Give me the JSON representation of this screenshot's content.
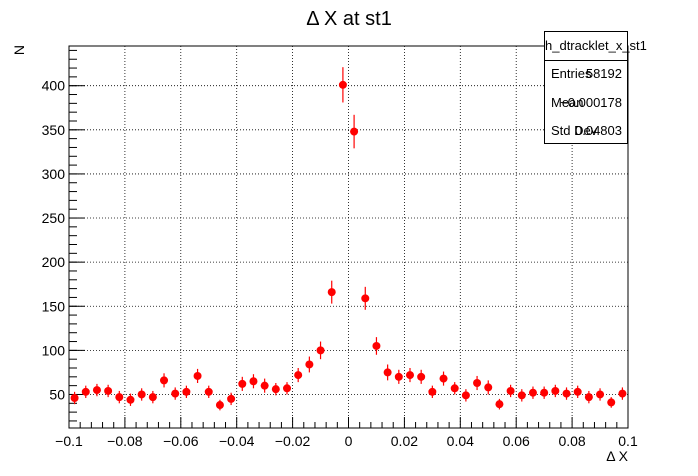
{
  "chart_data": {
    "type": "scatter",
    "title": "Δ X at st1",
    "xlabel": "Δ X",
    "ylabel": "N",
    "xlim": [
      -0.1,
      0.1
    ],
    "ylim": [
      12,
      445
    ],
    "x_ticks": [
      -0.1,
      -0.08,
      -0.06,
      -0.04,
      -0.02,
      0,
      0.02,
      0.04,
      0.06,
      0.08,
      0.1
    ],
    "x_tick_labels": [
      "−0.1",
      "−0.08",
      "−0.06",
      "−0.04",
      "−0.02",
      "0",
      "0.02",
      "0.04",
      "0.06",
      "0.08",
      "0.1"
    ],
    "y_ticks": [
      50,
      100,
      150,
      200,
      250,
      300,
      350,
      400
    ],
    "y_tick_labels": [
      "50",
      "100",
      "150",
      "200",
      "250",
      "300",
      "350",
      "400"
    ],
    "grid": true,
    "marker_color": "#ff0000",
    "series": [
      {
        "points": [
          {
            "x": -0.098,
            "y": 46,
            "err": 7
          },
          {
            "x": -0.094,
            "y": 53,
            "err": 7
          },
          {
            "x": -0.09,
            "y": 55,
            "err": 7
          },
          {
            "x": -0.086,
            "y": 54,
            "err": 7
          },
          {
            "x": -0.082,
            "y": 47,
            "err": 7
          },
          {
            "x": -0.078,
            "y": 44,
            "err": 7
          },
          {
            "x": -0.074,
            "y": 50,
            "err": 7
          },
          {
            "x": -0.07,
            "y": 47,
            "err": 7
          },
          {
            "x": -0.066,
            "y": 66,
            "err": 8
          },
          {
            "x": -0.062,
            "y": 51,
            "err": 7
          },
          {
            "x": -0.058,
            "y": 53,
            "err": 7
          },
          {
            "x": -0.054,
            "y": 71,
            "err": 8
          },
          {
            "x": -0.05,
            "y": 53,
            "err": 7
          },
          {
            "x": -0.046,
            "y": 38,
            "err": 6
          },
          {
            "x": -0.042,
            "y": 45,
            "err": 7
          },
          {
            "x": -0.038,
            "y": 62,
            "err": 8
          },
          {
            "x": -0.034,
            "y": 65,
            "err": 8
          },
          {
            "x": -0.03,
            "y": 60,
            "err": 8
          },
          {
            "x": -0.026,
            "y": 56,
            "err": 7
          },
          {
            "x": -0.022,
            "y": 57,
            "err": 7
          },
          {
            "x": -0.018,
            "y": 72,
            "err": 8
          },
          {
            "x": -0.014,
            "y": 84,
            "err": 9
          },
          {
            "x": -0.01,
            "y": 100,
            "err": 10
          },
          {
            "x": -0.006,
            "y": 166,
            "err": 13
          },
          {
            "x": -0.002,
            "y": 401,
            "err": 20
          },
          {
            "x": 0.002,
            "y": 348,
            "err": 19
          },
          {
            "x": 0.006,
            "y": 159,
            "err": 13
          },
          {
            "x": 0.01,
            "y": 105,
            "err": 10
          },
          {
            "x": 0.014,
            "y": 75,
            "err": 9
          },
          {
            "x": 0.018,
            "y": 70,
            "err": 8
          },
          {
            "x": 0.022,
            "y": 72,
            "err": 8
          },
          {
            "x": 0.026,
            "y": 70,
            "err": 8
          },
          {
            "x": 0.03,
            "y": 53,
            "err": 7
          },
          {
            "x": 0.034,
            "y": 68,
            "err": 8
          },
          {
            "x": 0.038,
            "y": 57,
            "err": 7
          },
          {
            "x": 0.042,
            "y": 49,
            "err": 7
          },
          {
            "x": 0.046,
            "y": 63,
            "err": 8
          },
          {
            "x": 0.05,
            "y": 58,
            "err": 8
          },
          {
            "x": 0.054,
            "y": 39,
            "err": 6
          },
          {
            "x": 0.058,
            "y": 54,
            "err": 7
          },
          {
            "x": 0.062,
            "y": 49,
            "err": 7
          },
          {
            "x": 0.066,
            "y": 52,
            "err": 7
          },
          {
            "x": 0.07,
            "y": 52,
            "err": 7
          },
          {
            "x": 0.074,
            "y": 54,
            "err": 7
          },
          {
            "x": 0.078,
            "y": 51,
            "err": 7
          },
          {
            "x": 0.082,
            "y": 53,
            "err": 7
          },
          {
            "x": 0.086,
            "y": 47,
            "err": 7
          },
          {
            "x": 0.09,
            "y": 50,
            "err": 7
          },
          {
            "x": 0.094,
            "y": 41,
            "err": 6
          },
          {
            "x": 0.098,
            "y": 51,
            "err": 7
          }
        ]
      }
    ]
  },
  "stats_box": {
    "name": "h_dtracklet_x_st1",
    "entries_label": "Entries",
    "entries_value": "58192",
    "mean_label": "Mean",
    "mean_value": "−0.000178",
    "stddev_label": "Std Dev",
    "stddev_value": "0.04803"
  }
}
